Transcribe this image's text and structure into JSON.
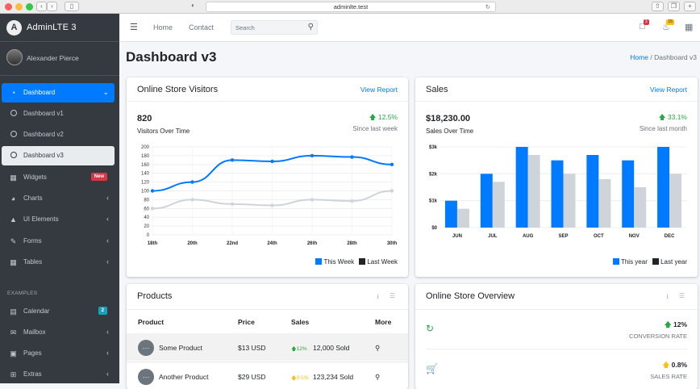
{
  "browser": {
    "url": "adminlte.test"
  },
  "sidebar": {
    "brand": "AdminLTE 3",
    "user": "Alexander Pierce",
    "items": [
      {
        "label": "Dashboard",
        "icon": "dashboard-icon",
        "active": true
      },
      {
        "label": "Dashboard v1",
        "icon": "circle-icon"
      },
      {
        "label": "Dashboard v2",
        "icon": "circle-icon"
      },
      {
        "label": "Dashboard v3",
        "icon": "circle-icon",
        "selected": true
      },
      {
        "label": "Widgets",
        "icon": "grid-icon",
        "badge": "New"
      },
      {
        "label": "Charts",
        "icon": "pie-chart-icon"
      },
      {
        "label": "UI Elements",
        "icon": "tree-icon"
      },
      {
        "label": "Forms",
        "icon": "edit-icon"
      },
      {
        "label": "Tables",
        "icon": "table-icon"
      }
    ],
    "header": "EXAMPLES",
    "examples": [
      {
        "label": "Calendar",
        "icon": "calendar-icon",
        "badge": "2"
      },
      {
        "label": "Mailbox",
        "icon": "envelope-icon"
      },
      {
        "label": "Pages",
        "icon": "book-icon"
      },
      {
        "label": "Extras",
        "icon": "plus-square-icon"
      }
    ]
  },
  "topnav": {
    "home": "Home",
    "contact": "Contact",
    "search_placeholder": "Search",
    "messages_count": "3",
    "notifications_count": "15"
  },
  "page": {
    "title": "Dashboard v3",
    "breadcrumb_home": "Home",
    "breadcrumb_sep": "/",
    "breadcrumb_current": "Dashboard v3"
  },
  "visitors": {
    "title": "Online Store Visitors",
    "link": "View Report",
    "total": "820",
    "subtitle": "Visitors Over Time",
    "change": "12.5%",
    "since": "Since last week",
    "legend_this": "This Week",
    "legend_last": "Last Week"
  },
  "sales": {
    "title": "Sales",
    "link": "View Report",
    "total": "$18,230.00",
    "subtitle": "Sales Over Time",
    "change": "33.1%",
    "since": "Since last month",
    "legend_this": "This year",
    "legend_last": "Last year"
  },
  "products": {
    "title": "Products",
    "headers": {
      "product": "Product",
      "price": "Price",
      "sales": "Sales",
      "more": "More"
    },
    "rows": [
      {
        "name": "Some Product",
        "price": "$13 USD",
        "change": "12%",
        "dir": "up",
        "sold": "12,000 Sold"
      },
      {
        "name": "Another Product",
        "price": "$29 USD",
        "change": "0.5%",
        "dir": "up-warn",
        "sold": "123,234 Sold"
      }
    ]
  },
  "overview": {
    "title": "Online Store Overview",
    "items": [
      {
        "value": "12%",
        "label": "CONVERSION RATE",
        "icon": "refresh-icon"
      },
      {
        "value": "0.8%",
        "label": "SALES RATE",
        "icon": "cart-icon"
      }
    ]
  },
  "chart_data": [
    {
      "type": "line",
      "categories": [
        "18th",
        "20th",
        "22nd",
        "24th",
        "26th",
        "28th",
        "30th"
      ],
      "ylim": [
        0,
        200
      ],
      "yticks": [
        0,
        20,
        40,
        60,
        80,
        100,
        120,
        140,
        160,
        180,
        200
      ],
      "series": [
        {
          "name": "This Week",
          "color": "#007bff",
          "values": [
            100,
            120,
            170,
            167,
            180,
            177,
            160
          ]
        },
        {
          "name": "Last Week",
          "color": "#ced4da",
          "values": [
            60,
            80,
            70,
            67,
            80,
            77,
            100
          ]
        }
      ]
    },
    {
      "type": "bar",
      "categories": [
        "JUN",
        "JUL",
        "AUG",
        "SEP",
        "OCT",
        "NOV",
        "DEC"
      ],
      "ylim": [
        0,
        3000
      ],
      "yticks": [
        "$0",
        "$1k",
        "$2k",
        "$3k"
      ],
      "series": [
        {
          "name": "This year",
          "color": "#007bff",
          "values": [
            1000,
            2000,
            3000,
            2500,
            2700,
            2500,
            3000
          ]
        },
        {
          "name": "Last year",
          "color": "#ced4da",
          "values": [
            700,
            1700,
            2700,
            2000,
            1800,
            1500,
            2000
          ]
        }
      ]
    }
  ]
}
